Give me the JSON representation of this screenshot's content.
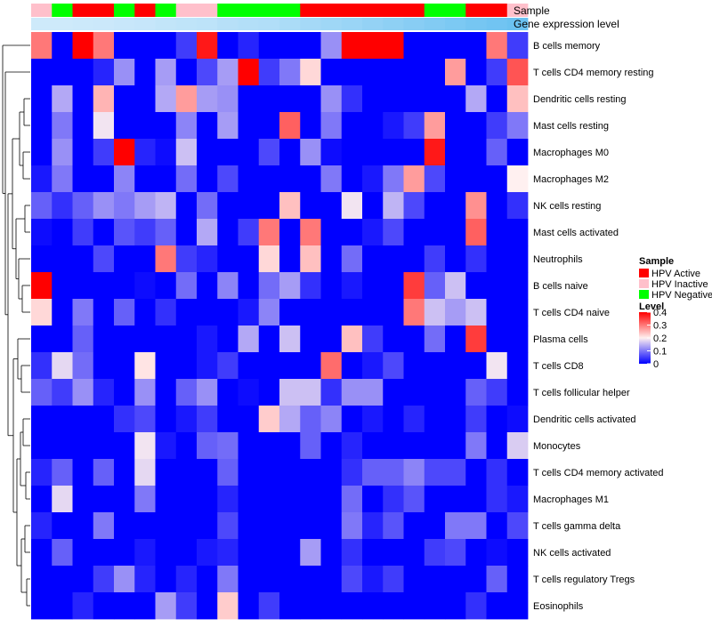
{
  "chart_data": {
    "type": "heatmap",
    "title": "",
    "annotation_labels": {
      "sample": "Sample",
      "gene_expression": "Gene expression level"
    },
    "sample_annotation": [
      "HPV Inactive",
      "HPV Negative",
      "HPV Active",
      "HPV Active",
      "HPV Negative",
      "HPV Active",
      "HPV Negative",
      "HPV Inactive",
      "HPV Inactive",
      "HPV Negative",
      "HPV Negative",
      "HPV Negative",
      "HPV Negative",
      "HPV Active",
      "HPV Active",
      "HPV Active",
      "HPV Active",
      "HPV Active",
      "HPV Active",
      "HPV Negative",
      "HPV Negative",
      "HPV Active",
      "HPV Active",
      "HPV Inactive"
    ],
    "gene_expression_annotation": [
      0.05,
      0.05,
      0.07,
      0.08,
      0.1,
      0.12,
      0.15,
      0.18,
      0.2,
      0.25,
      0.28,
      0.3,
      0.35,
      0.4,
      0.45,
      0.5,
      0.55,
      0.6,
      0.65,
      0.7,
      0.75,
      0.8,
      0.85,
      0.9
    ],
    "rows": [
      "B cells memory",
      "T cells CD4 memory resting",
      "Dendritic cells resting",
      "Mast cells resting",
      "Macrophages M0",
      "Macrophages M2",
      "NK cells resting",
      "Mast cells activated",
      "Neutrophils",
      "B cells naive",
      "T cells CD4 naive",
      "Plasma cells",
      "T cells CD8",
      "T cells follicular helper",
      "Dendritic cells activated",
      "Monocytes",
      "T cells CD4 memory activated",
      "Macrophages M1",
      "T cells gamma delta",
      "NK cells activated",
      "T cells regulatory  Tregs",
      "Eosinophils"
    ],
    "values": [
      [
        0.3,
        0.0,
        0.4,
        0.3,
        0.0,
        0.0,
        0.0,
        0.05,
        0.38,
        0.0,
        0.03,
        0.0,
        0.0,
        0.0,
        0.12,
        0.4,
        0.4,
        0.4,
        0.0,
        0.0,
        0.0,
        0.0,
        0.3,
        0.05
      ],
      [
        0.0,
        0.0,
        0.0,
        0.03,
        0.12,
        0.0,
        0.13,
        0.0,
        0.06,
        0.13,
        0.4,
        0.05,
        0.1,
        0.22,
        0.0,
        0.0,
        0.0,
        0.0,
        0.0,
        0.0,
        0.27,
        0.0,
        0.05,
        0.33
      ],
      [
        0.0,
        0.14,
        0.0,
        0.25,
        0.0,
        0.0,
        0.14,
        0.27,
        0.13,
        0.12,
        0.0,
        0.0,
        0.0,
        0.0,
        0.12,
        0.04,
        0.0,
        0.0,
        0.0,
        0.0,
        0.0,
        0.14,
        0.0,
        0.24
      ],
      [
        0.0,
        0.1,
        0.0,
        0.19,
        0.0,
        0.0,
        0.0,
        0.11,
        0.0,
        0.13,
        0.0,
        0.0,
        0.32,
        0.0,
        0.1,
        0.0,
        0.0,
        0.02,
        0.05,
        0.27,
        0.0,
        0.0,
        0.05,
        0.1
      ],
      [
        0.0,
        0.12,
        0.0,
        0.05,
        0.4,
        0.03,
        0.01,
        0.16,
        0.0,
        0.0,
        0.0,
        0.06,
        0.0,
        0.12,
        0.01,
        0.0,
        0.0,
        0.0,
        0.0,
        0.38,
        0.0,
        0.0,
        0.08,
        0.0
      ],
      [
        0.02,
        0.1,
        0.0,
        0.0,
        0.11,
        0.0,
        0.0,
        0.09,
        0.0,
        0.06,
        0.0,
        0.0,
        0.0,
        0.0,
        0.1,
        0.0,
        0.02,
        0.1,
        0.27,
        0.06,
        0.0,
        0.0,
        0.0,
        0.2
      ],
      [
        0.08,
        0.04,
        0.08,
        0.12,
        0.1,
        0.13,
        0.15,
        0.0,
        0.09,
        0.0,
        0.0,
        0.0,
        0.24,
        0.0,
        0.0,
        0.19,
        0.0,
        0.15,
        0.06,
        0.0,
        0.0,
        0.28,
        0.0,
        0.04
      ],
      [
        0.01,
        0.0,
        0.05,
        0.0,
        0.07,
        0.05,
        0.08,
        0.0,
        0.14,
        0.0,
        0.05,
        0.3,
        0.0,
        0.3,
        0.0,
        0.0,
        0.02,
        0.06,
        0.0,
        0.0,
        0.0,
        0.32,
        0.0,
        0.0
      ],
      [
        0.0,
        0.0,
        0.0,
        0.06,
        0.0,
        0.0,
        0.3,
        0.05,
        0.03,
        0.0,
        0.0,
        0.22,
        0.0,
        0.24,
        0.0,
        0.09,
        0.0,
        0.0,
        0.0,
        0.05,
        0.0,
        0.04,
        0.0,
        0.0
      ],
      [
        0.4,
        0.0,
        0.0,
        0.0,
        0.0,
        0.01,
        0.0,
        0.09,
        0.0,
        0.11,
        0.0,
        0.09,
        0.13,
        0.04,
        0.0,
        0.02,
        0.0,
        0.0,
        0.35,
        0.08,
        0.16,
        0.0,
        0.0,
        0.0
      ],
      [
        0.22,
        0.0,
        0.1,
        0.0,
        0.08,
        0.0,
        0.04,
        0.0,
        0.0,
        0.0,
        0.02,
        0.11,
        0.0,
        0.0,
        0.0,
        0.0,
        0.0,
        0.0,
        0.3,
        0.16,
        0.13,
        0.16,
        0.0,
        0.0
      ],
      [
        0.0,
        0.0,
        0.08,
        0.0,
        0.0,
        0.0,
        0.0,
        0.0,
        0.02,
        0.0,
        0.14,
        0.0,
        0.16,
        0.0,
        0.0,
        0.24,
        0.05,
        0.0,
        0.0,
        0.09,
        0.0,
        0.35,
        0.0,
        0.0
      ],
      [
        0.04,
        0.18,
        0.09,
        0.0,
        0.0,
        0.21,
        0.0,
        0.0,
        0.02,
        0.05,
        0.0,
        0.0,
        0.0,
        0.0,
        0.31,
        0.0,
        0.02,
        0.06,
        0.0,
        0.0,
        0.0,
        0.0,
        0.19,
        0.0
      ],
      [
        0.08,
        0.05,
        0.12,
        0.03,
        0.0,
        0.12,
        0.0,
        0.08,
        0.12,
        0.0,
        0.01,
        0.0,
        0.16,
        0.16,
        0.04,
        0.12,
        0.12,
        0.0,
        0.0,
        0.0,
        0.0,
        0.08,
        0.05,
        0.0
      ],
      [
        0.0,
        0.0,
        0.0,
        0.0,
        0.04,
        0.06,
        0.0,
        0.02,
        0.05,
        0.0,
        0.0,
        0.23,
        0.14,
        0.08,
        0.11,
        0.0,
        0.02,
        0.0,
        0.03,
        0.0,
        0.0,
        0.05,
        0.0,
        0.01
      ],
      [
        0.0,
        0.0,
        0.0,
        0.0,
        0.0,
        0.19,
        0.02,
        0.0,
        0.08,
        0.09,
        0.0,
        0.0,
        0.0,
        0.08,
        0.0,
        0.03,
        0.0,
        0.0,
        0.0,
        0.0,
        0.0,
        0.1,
        0.0,
        0.17
      ],
      [
        0.03,
        0.08,
        0.0,
        0.08,
        0.0,
        0.18,
        0.0,
        0.0,
        0.0,
        0.08,
        0.0,
        0.0,
        0.0,
        0.0,
        0.0,
        0.04,
        0.08,
        0.08,
        0.11,
        0.06,
        0.06,
        0.0,
        0.04,
        0.0
      ],
      [
        0.0,
        0.18,
        0.0,
        0.0,
        0.0,
        0.1,
        0.0,
        0.0,
        0.0,
        0.03,
        0.0,
        0.0,
        0.0,
        0.0,
        0.0,
        0.09,
        0.0,
        0.04,
        0.07,
        0.0,
        0.0,
        0.0,
        0.04,
        0.02
      ],
      [
        0.03,
        0.0,
        0.0,
        0.1,
        0.0,
        0.0,
        0.0,
        0.0,
        0.0,
        0.06,
        0.0,
        0.0,
        0.0,
        0.0,
        0.0,
        0.1,
        0.03,
        0.07,
        0.0,
        0.0,
        0.1,
        0.1,
        0.0,
        0.06
      ],
      [
        0.0,
        0.08,
        0.0,
        0.0,
        0.0,
        0.02,
        0.0,
        0.0,
        0.02,
        0.03,
        0.0,
        0.0,
        0.0,
        0.13,
        0.0,
        0.04,
        0.0,
        0.0,
        0.0,
        0.05,
        0.06,
        0.0,
        0.01,
        0.0
      ],
      [
        0.0,
        0.0,
        0.0,
        0.05,
        0.12,
        0.03,
        0.0,
        0.03,
        0.0,
        0.1,
        0.0,
        0.0,
        0.0,
        0.0,
        0.0,
        0.06,
        0.02,
        0.05,
        0.0,
        0.0,
        0.0,
        0.0,
        0.08,
        0.0
      ],
      [
        0.0,
        0.0,
        0.03,
        0.0,
        0.0,
        0.0,
        0.13,
        0.05,
        0.0,
        0.23,
        0.0,
        0.05,
        0.0,
        0.0,
        0.0,
        0.0,
        0.0,
        0.0,
        0.0,
        0.0,
        0.0,
        0.04,
        0.0,
        0.0
      ]
    ],
    "color_scale": {
      "min": 0,
      "mid": 0.2,
      "max": 0.4,
      "low_color": "#0000ff",
      "mid_color": "#fff0f0",
      "high_color": "#ff0000"
    },
    "gene_expression_colors": {
      "low": "#d4ecfb",
      "high": "#5fbdf0"
    },
    "legends": {
      "sample": {
        "title": "Sample",
        "entries": [
          {
            "label": "HPV Active",
            "color": "#ff0000"
          },
          {
            "label": "HPV Inactive",
            "color": "#ffc0cb"
          },
          {
            "label": "HPV Negative",
            "color": "#00ff00"
          }
        ]
      },
      "level": {
        "title": "Level",
        "ticks": [
          {
            "value": 0.4,
            "label": "0.4"
          },
          {
            "value": 0.3,
            "label": "0.3"
          },
          {
            "value": 0.2,
            "label": "0.2"
          },
          {
            "value": 0.1,
            "label": "0.1"
          },
          {
            "value": 0,
            "label": "0"
          }
        ]
      }
    }
  }
}
